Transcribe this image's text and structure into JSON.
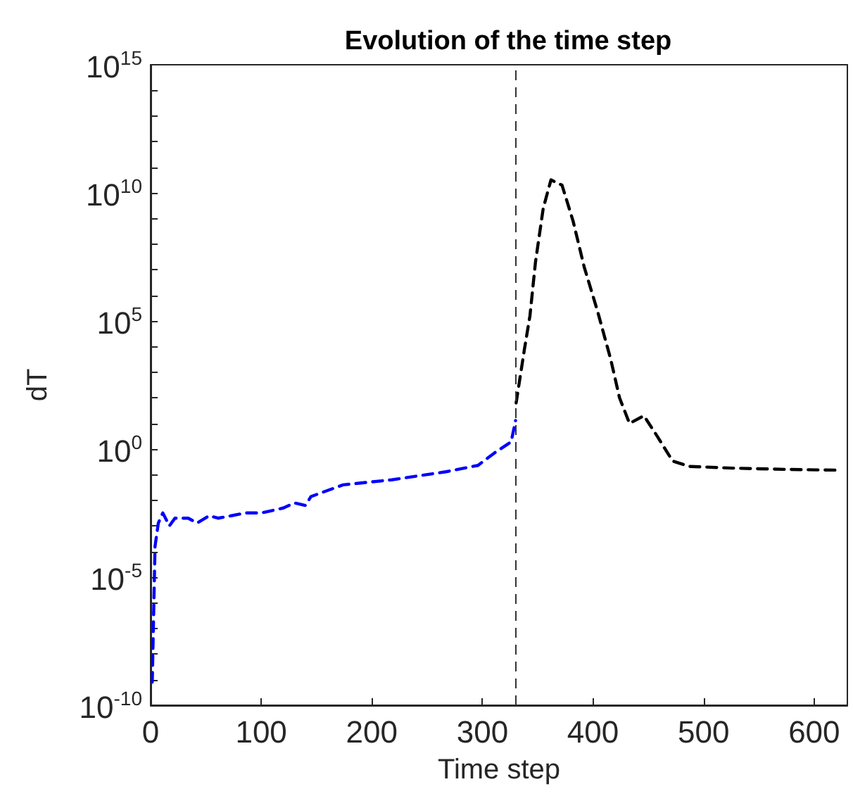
{
  "chart_data": {
    "type": "line",
    "title": "Evolution of the time step",
    "xlabel": "Time step",
    "ylabel": "dT",
    "log": "y",
    "grid": false,
    "marker": "none",
    "line_style": "dashed",
    "xlim": [
      0,
      630
    ],
    "xticks": [
      0,
      100,
      200,
      300,
      400,
      500,
      600
    ],
    "ylim": [
      1e-10,
      1000000000000000.0
    ],
    "yticks": [
      {
        "value": 1e-10,
        "label": "10$^{-10}$"
      },
      {
        "value": 1e-09,
        "label": null
      },
      {
        "value": 1e-08,
        "label": null
      },
      {
        "value": 1e-07,
        "label": null
      },
      {
        "value": 1e-06,
        "label": null
      },
      {
        "value": 1e-05,
        "label": "10$^{-5}$"
      },
      {
        "value": 0.0001,
        "label": null
      },
      {
        "value": 0.001,
        "label": null
      },
      {
        "value": 0.01,
        "label": null
      },
      {
        "value": 0.1,
        "label": null
      },
      {
        "value": 1,
        "label": "10$^{0}$"
      },
      {
        "value": 10,
        "label": null
      },
      {
        "value": 100,
        "label": null
      },
      {
        "value": 1000,
        "label": null
      },
      {
        "value": 10000,
        "label": null
      },
      {
        "value": 100000,
        "label": "10$^{5}$"
      },
      {
        "value": 1000000.0,
        "label": null
      },
      {
        "value": 10000000.0,
        "label": null
      },
      {
        "value": 100000000.0,
        "label": null
      },
      {
        "value": 1000000000.0,
        "label": null
      },
      {
        "value": 10000000000.0,
        "label": "10$^{10}$"
      },
      {
        "value": 100000000000.0,
        "label": null
      },
      {
        "value": 1000000000000.0,
        "label": null
      },
      {
        "value": 10000000000000.0,
        "label": null
      },
      {
        "value": 100000000000000.0,
        "label": null
      },
      {
        "value": 1000000000000000.0,
        "label": "10$^{15}$"
      }
    ],
    "ref_lines": [
      {
        "axis": "x",
        "value": 330,
        "color": "#333333",
        "line_style": "dashed"
      }
    ],
    "series": [
      {
        "color": "#0000ff",
        "x": [
          1.5,
          4,
          7,
          11,
          17,
          22,
          34,
          42,
          53,
          61,
          73,
          86,
          100,
          120,
          130,
          140,
          145,
          174,
          218,
          267,
          296,
          311,
          326,
          330
        ],
        "values": [
          7.9e-10,
          0.00016,
          0.0013,
          0.0032,
          0.001,
          0.002,
          0.002,
          0.0013,
          0.0025,
          0.002,
          0.0025,
          0.0032,
          0.0032,
          0.005,
          0.0079,
          0.0063,
          0.014,
          0.04,
          0.063,
          0.13,
          0.23,
          0.71,
          1.9,
          13
        ]
      },
      {
        "color": "#000000",
        "x": [
          330.5,
          338,
          343,
          348,
          355,
          362,
          372,
          382,
          392,
          404,
          416,
          424,
          433,
          446,
          458,
          472,
          487,
          526,
          575,
          622
        ],
        "values": [
          63,
          7900,
          160000.0,
          20000000.0,
          2500000000.0,
          32000000000.0,
          20000000000.0,
          790000000.0,
          13000000.0,
          250000.0,
          3200,
          100,
          10,
          20,
          3.2,
          0.34,
          0.21,
          0.18,
          0.16,
          0.15
        ]
      }
    ]
  }
}
